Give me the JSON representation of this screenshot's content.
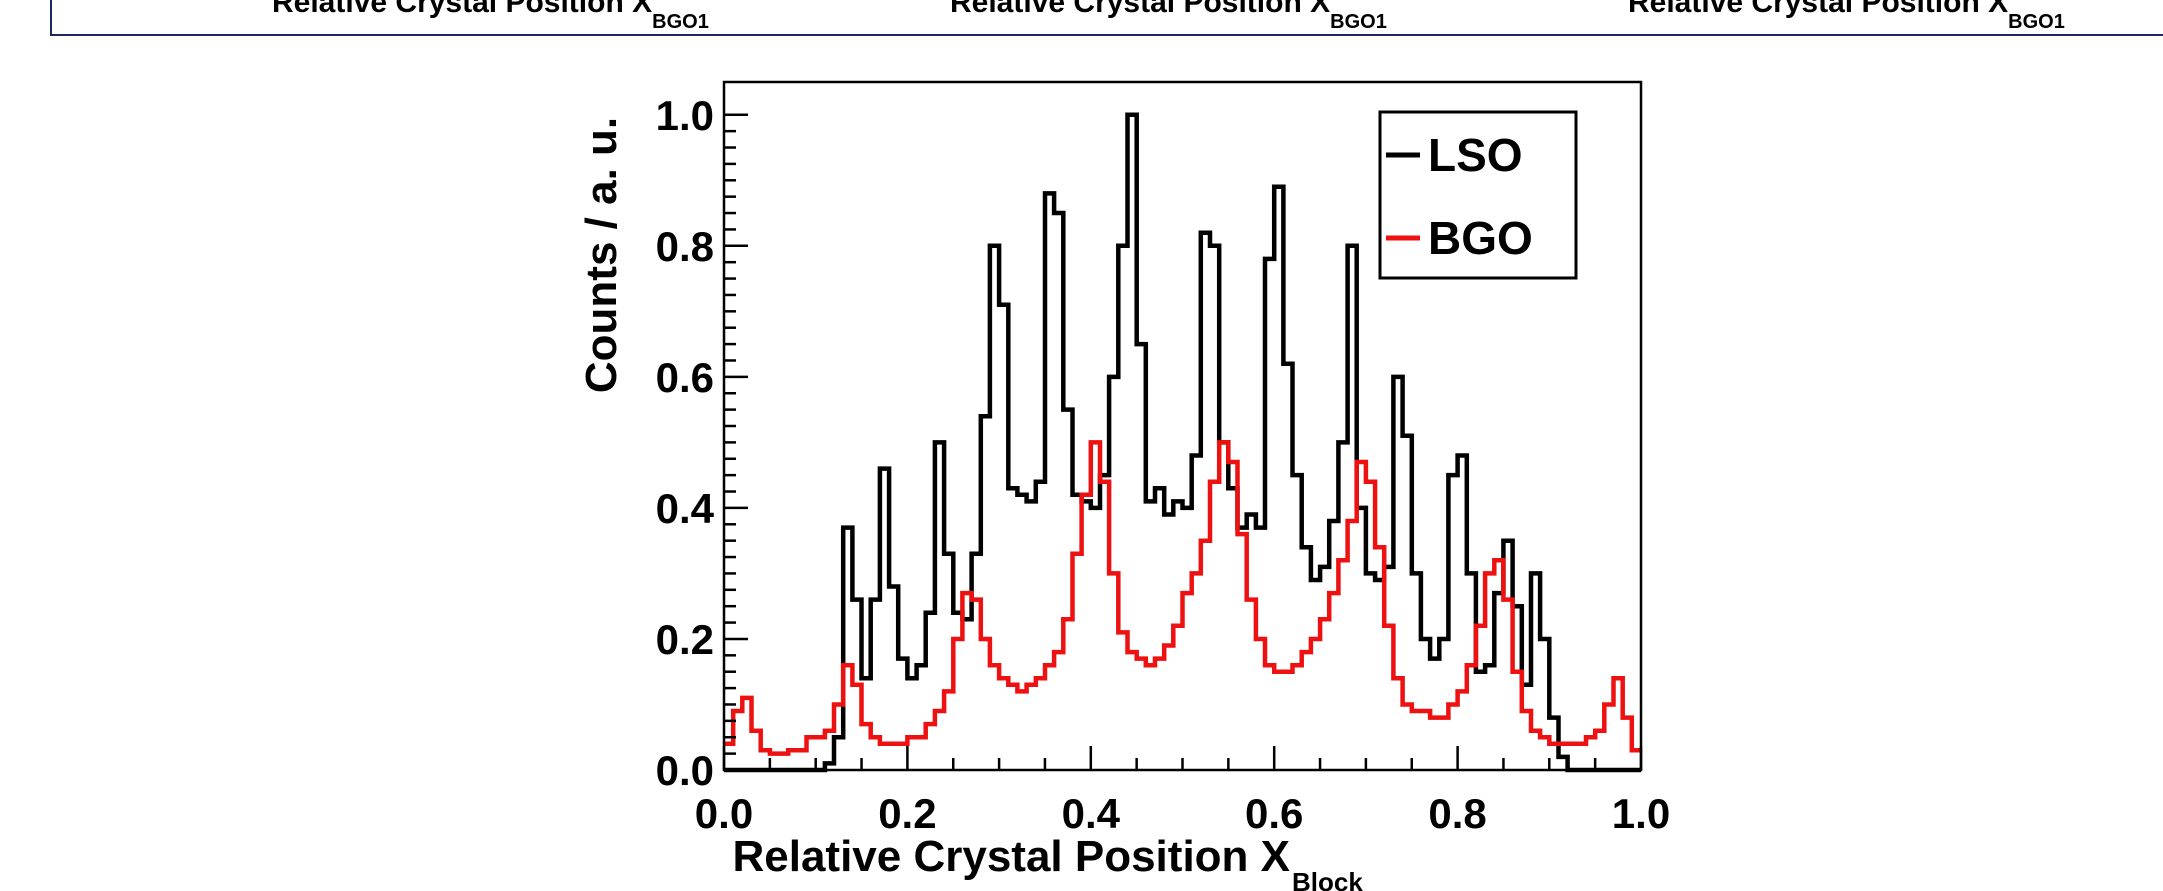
{
  "top_strip": {
    "labels": [
      {
        "main": "Relative Crystal Position X",
        "sub": "BGO1"
      },
      {
        "main": "Relative Crystal Position X",
        "sub": "BGO1"
      },
      {
        "main": "Relative Crystal Position X",
        "sub": "BGO1"
      }
    ]
  },
  "chart_data": {
    "type": "line",
    "style": "step-histogram",
    "xlabel": "Relative Crystal Position X",
    "xlabel_sub": "Block",
    "ylabel": "Counts / a. u.",
    "xlim": [
      0.0,
      1.0
    ],
    "ylim": [
      0.0,
      1.05
    ],
    "x_ticks": [
      "0.0",
      "0.2",
      "0.4",
      "0.6",
      "0.8",
      "1.0"
    ],
    "y_ticks": [
      "0.0",
      "0.2",
      "0.4",
      "0.6",
      "0.8",
      "1.0"
    ],
    "grid": false,
    "legend_position": "top-right",
    "bin_width": 0.01,
    "series": [
      {
        "name": "LSO",
        "color": "#000000",
        "values": [
          0,
          0,
          0,
          0,
          0,
          0,
          0,
          0,
          0,
          0,
          0,
          0.01,
          0.05,
          0.37,
          0.26,
          0.14,
          0.26,
          0.46,
          0.28,
          0.17,
          0.14,
          0.16,
          0.24,
          0.5,
          0.33,
          0.24,
          0.23,
          0.33,
          0.54,
          0.8,
          0.71,
          0.43,
          0.42,
          0.41,
          0.44,
          0.88,
          0.85,
          0.55,
          0.42,
          0.41,
          0.4,
          0.45,
          0.6,
          0.8,
          1.0,
          0.65,
          0.41,
          0.43,
          0.39,
          0.41,
          0.4,
          0.48,
          0.82,
          0.8,
          0.5,
          0.43,
          0.37,
          0.39,
          0.37,
          0.78,
          0.89,
          0.62,
          0.45,
          0.34,
          0.29,
          0.31,
          0.38,
          0.5,
          0.8,
          0.4,
          0.3,
          0.29,
          0.31,
          0.6,
          0.51,
          0.3,
          0.2,
          0.17,
          0.2,
          0.45,
          0.48,
          0.3,
          0.15,
          0.16,
          0.27,
          0.35,
          0.25,
          0.13,
          0.3,
          0.2,
          0.08,
          0.02,
          0,
          0,
          0,
          0,
          0,
          0,
          0,
          0
        ]
      },
      {
        "name": "BGO",
        "color": "#ee1111",
        "values": [
          0.04,
          0.09,
          0.11,
          0.06,
          0.03,
          0.025,
          0.025,
          0.03,
          0.03,
          0.05,
          0.05,
          0.06,
          0.1,
          0.16,
          0.13,
          0.07,
          0.05,
          0.04,
          0.04,
          0.04,
          0.05,
          0.05,
          0.07,
          0.09,
          0.12,
          0.2,
          0.27,
          0.26,
          0.2,
          0.16,
          0.14,
          0.13,
          0.12,
          0.13,
          0.14,
          0.16,
          0.18,
          0.23,
          0.33,
          0.42,
          0.5,
          0.44,
          0.3,
          0.21,
          0.18,
          0.17,
          0.16,
          0.17,
          0.19,
          0.22,
          0.27,
          0.3,
          0.35,
          0.44,
          0.5,
          0.47,
          0.36,
          0.26,
          0.2,
          0.16,
          0.15,
          0.15,
          0.16,
          0.18,
          0.2,
          0.23,
          0.27,
          0.32,
          0.38,
          0.47,
          0.44,
          0.34,
          0.22,
          0.14,
          0.1,
          0.09,
          0.09,
          0.08,
          0.08,
          0.1,
          0.12,
          0.16,
          0.22,
          0.3,
          0.32,
          0.26,
          0.15,
          0.09,
          0.06,
          0.05,
          0.04,
          0.04,
          0.04,
          0.04,
          0.05,
          0.06,
          0.1,
          0.14,
          0.08,
          0.03
        ]
      }
    ]
  }
}
